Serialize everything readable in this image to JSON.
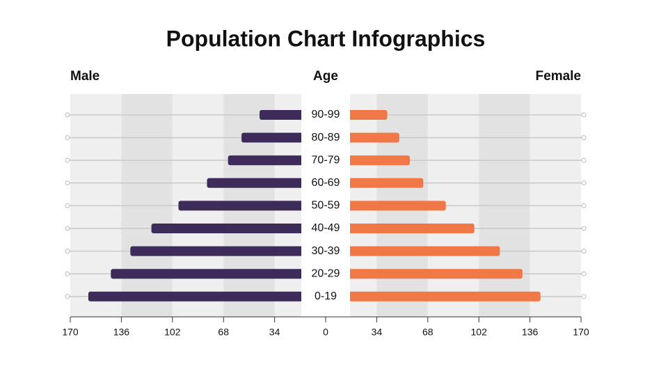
{
  "chart_data": {
    "type": "pyramid",
    "title": "Population Chart Infographics",
    "y_label": "Age",
    "categories": [
      "90-99",
      "80-89",
      "70-79",
      "60-69",
      "50-59",
      "40-49",
      "30-39",
      "20-29",
      "0-19"
    ],
    "series": [
      {
        "name": "Male",
        "color": "#3d2b5a",
        "values": [
          44,
          56,
          65,
          79,
          98,
          116,
          130,
          143,
          158
        ]
      },
      {
        "name": "Female",
        "color": "#f07746",
        "values": [
          41,
          49,
          56,
          65,
          80,
          99,
          116,
          131,
          143
        ]
      }
    ],
    "xlim": [
      0,
      170
    ],
    "xticks": [
      0,
      34,
      68,
      102,
      136,
      170
    ],
    "grid": true
  }
}
